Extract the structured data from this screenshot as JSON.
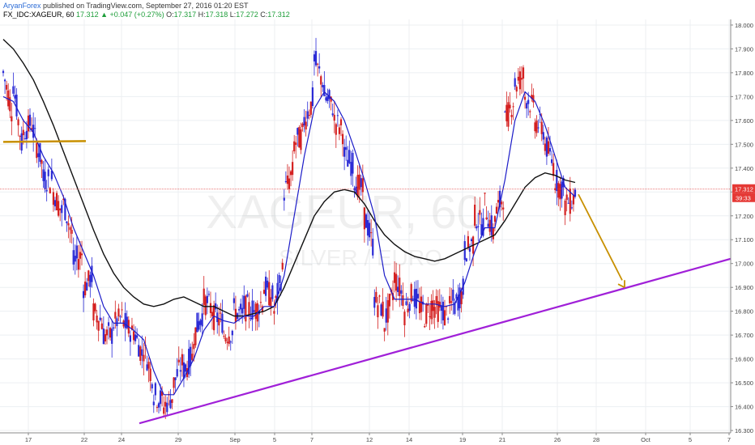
{
  "header": {
    "author": "AryanForex",
    "published": " published on TradingView.com, September 27, 2016 01:20 EST",
    "symbol": "FX_IDC:XAGEUR, 60",
    "last": "17.312",
    "arrow": "▲",
    "change": "+0.047 (+0.27%)",
    "o_label": "O:",
    "o": "17.317",
    "h_label": "H:",
    "h": "17.318",
    "l_label": "L:",
    "l": "17.272",
    "c_label": "C:",
    "c": "17.312"
  },
  "watermark": {
    "symbol": "XAGEUR, 60",
    "name": "SILVER / EURO"
  },
  "price_badge": {
    "price": "17.312",
    "countdown": "39:33"
  },
  "colors": {
    "up_candle": "#2b2bd6",
    "down_candle": "#d42020",
    "fast_ma": "#1c1cc8",
    "slow_ma": "#111111",
    "support_line": "#a020d8",
    "resistance_seg": "#c89000",
    "arrow": "#c89000",
    "price_line": "#e24a4a"
  },
  "chart_data": {
    "type": "candlestick",
    "ylim": [
      16.29,
      18.01
    ],
    "y_ticks": [
      "16.300",
      "16.400",
      "16.500",
      "16.600",
      "16.700",
      "16.800",
      "16.900",
      "17.000",
      "17.100",
      "17.200",
      "17.300",
      "17.400",
      "17.500",
      "17.600",
      "17.700",
      "17.800",
      "17.900",
      "18.000"
    ],
    "x_ticks": [
      "17",
      "22",
      "24",
      "29",
      "Sep",
      "5",
      "7",
      "12",
      "14",
      "19",
      "21",
      "26",
      "28",
      "Oct",
      "5",
      "7"
    ],
    "ohlc_path": [
      [
        17.7,
        17.8
      ],
      [
        17.62,
        17.75
      ],
      [
        17.45,
        17.55
      ],
      [
        17.6,
        17.55
      ],
      [
        17.4,
        17.35
      ],
      [
        17.35,
        17.3
      ],
      [
        17.2,
        17.25
      ],
      [
        17.1,
        17.0
      ],
      [
        17.05,
        16.9
      ],
      [
        16.95,
        16.8
      ],
      [
        16.75,
        16.7
      ],
      [
        16.7,
        16.75
      ],
      [
        16.78,
        16.75
      ],
      [
        16.7,
        16.72
      ],
      [
        16.6,
        16.65
      ],
      [
        16.5,
        16.45
      ],
      [
        16.42,
        16.4
      ],
      [
        16.45,
        16.5
      ],
      [
        16.6,
        16.55
      ],
      [
        16.62,
        16.7
      ],
      [
        16.8,
        16.85
      ],
      [
        16.8,
        16.78
      ],
      [
        16.75,
        16.7
      ],
      [
        16.72,
        16.8
      ],
      [
        16.78,
        16.82
      ],
      [
        16.8,
        16.8
      ],
      [
        16.85,
        16.9
      ],
      [
        16.85,
        16.8
      ],
      [
        17.0,
        17.3
      ],
      [
        17.4,
        17.5
      ],
      [
        17.55,
        17.6
      ],
      [
        17.7,
        17.85
      ],
      [
        17.75,
        17.7
      ],
      [
        17.65,
        17.6
      ],
      [
        17.55,
        17.45
      ],
      [
        17.4,
        17.35
      ],
      [
        17.3,
        17.2
      ],
      [
        17.05,
        16.85
      ],
      [
        16.8,
        16.75
      ],
      [
        16.9,
        16.95
      ],
      [
        16.85,
        16.8
      ],
      [
        16.9,
        16.85
      ],
      [
        16.8,
        16.78
      ],
      [
        16.85,
        16.82
      ],
      [
        16.8,
        16.78
      ],
      [
        16.85,
        16.82
      ],
      [
        16.9,
        17.05
      ],
      [
        17.1,
        17.2
      ],
      [
        17.15,
        17.25
      ],
      [
        17.1,
        17.2
      ],
      [
        17.3,
        17.6
      ],
      [
        17.7,
        17.75
      ],
      [
        17.8,
        17.7
      ],
      [
        17.65,
        17.6
      ],
      [
        17.55,
        17.5
      ],
      [
        17.4,
        17.35
      ],
      [
        17.3,
        17.25
      ],
      [
        17.28,
        17.31
      ]
    ],
    "fast_ma_path": [
      17.7,
      17.68,
      17.6,
      17.55,
      17.45,
      17.38,
      17.28,
      17.15,
      17.05,
      16.95,
      16.82,
      16.75,
      16.75,
      16.72,
      16.68,
      16.55,
      16.45,
      16.45,
      16.52,
      16.6,
      16.72,
      16.78,
      16.76,
      16.75,
      16.78,
      16.78,
      16.82,
      16.82,
      16.95,
      17.2,
      17.45,
      17.65,
      17.72,
      17.68,
      17.6,
      17.48,
      17.35,
      17.2,
      16.95,
      16.85,
      16.85,
      16.85,
      16.83,
      16.83,
      16.82,
      16.83,
      16.92,
      17.05,
      17.15,
      17.15,
      17.35,
      17.6,
      17.72,
      17.68,
      17.58,
      17.45,
      17.32,
      17.28
    ],
    "slow_ma_path": [
      17.94,
      17.9,
      17.84,
      17.77,
      17.68,
      17.58,
      17.47,
      17.36,
      17.25,
      17.14,
      17.04,
      16.96,
      16.9,
      16.86,
      16.83,
      16.82,
      16.83,
      16.85,
      16.86,
      16.84,
      16.82,
      16.82,
      16.8,
      16.78,
      16.78,
      16.79,
      16.8,
      16.82,
      16.9,
      17.0,
      17.1,
      17.2,
      17.26,
      17.3,
      17.31,
      17.3,
      17.25,
      17.18,
      17.12,
      17.08,
      17.05,
      17.03,
      17.02,
      17.01,
      17.02,
      17.04,
      17.06,
      17.08,
      17.1,
      17.12,
      17.18,
      17.25,
      17.32,
      17.36,
      17.38,
      17.37,
      17.35,
      17.34
    ],
    "resistance_level": 17.51,
    "support_trendline": [
      [
        16.33,
        "24-Aug"
      ],
      [
        17.02,
        "7-Oct"
      ]
    ],
    "current_price": 17.312
  }
}
